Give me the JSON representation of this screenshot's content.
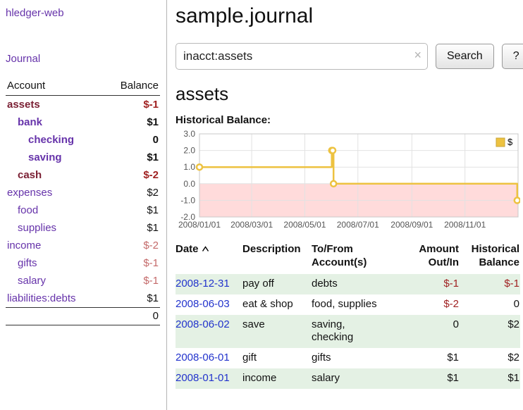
{
  "app": {
    "brand": "hledger-web"
  },
  "sidebar": {
    "journal_link": "Journal",
    "accounts": {
      "header_account": "Account",
      "header_balance": "Balance",
      "rows": [
        {
          "name": "assets",
          "balance": "$-1",
          "indent": 0,
          "bold": true,
          "name_style": "selected",
          "balance_style": "neg-strong"
        },
        {
          "name": "bank",
          "balance": "$1",
          "indent": 1,
          "bold": true,
          "name_style": "link",
          "balance_style": "normal"
        },
        {
          "name": "checking",
          "balance": "0",
          "indent": 2,
          "bold": true,
          "name_style": "link",
          "balance_style": "normal"
        },
        {
          "name": "saving",
          "balance": "$1",
          "indent": 2,
          "bold": true,
          "name_style": "link",
          "balance_style": "normal"
        },
        {
          "name": "cash",
          "balance": "$-2",
          "indent": 1,
          "bold": true,
          "name_style": "selected",
          "balance_style": "neg-strong"
        },
        {
          "name": "expenses",
          "balance": "$2",
          "indent": 0,
          "bold": false,
          "name_style": "link",
          "balance_style": "normal"
        },
        {
          "name": "food",
          "balance": "$1",
          "indent": 1,
          "bold": false,
          "name_style": "link",
          "balance_style": "normal"
        },
        {
          "name": "supplies",
          "balance": "$1",
          "indent": 1,
          "bold": false,
          "name_style": "link",
          "balance_style": "normal"
        },
        {
          "name": "income",
          "balance": "$-2",
          "indent": 0,
          "bold": false,
          "name_style": "link",
          "balance_style": "neg-muted"
        },
        {
          "name": "gifts",
          "balance": "$-1",
          "indent": 1,
          "bold": false,
          "name_style": "link",
          "balance_style": "neg-muted"
        },
        {
          "name": "salary",
          "balance": "$-1",
          "indent": 1,
          "bold": false,
          "name_style": "link",
          "balance_style": "neg-muted"
        },
        {
          "name": "liabilities:debts",
          "balance": "$1",
          "indent": 0,
          "bold": false,
          "name_style": "link",
          "balance_style": "normal"
        }
      ],
      "total": "0"
    }
  },
  "main": {
    "title": "sample.journal",
    "search": {
      "value": "inacct:assets",
      "clear_label": "×",
      "button_label": "Search",
      "help_label": "?"
    },
    "account_heading": "assets",
    "chart_heading": "Historical Balance:"
  },
  "chart_data": {
    "type": "line",
    "step": true,
    "title": "Historical Balance",
    "legend": "$",
    "legend_position": "top-right",
    "line_color": "#edc240",
    "negative_region_color": "#ffdbdb",
    "grid": true,
    "ylim": [
      -2.0,
      3.0
    ],
    "yticks": [
      "3.0",
      "2.0",
      "1.0",
      "0.0",
      "-1.0",
      "-2.0"
    ],
    "x_domain": [
      "2008-01-01",
      "2009-01-01"
    ],
    "xticks": [
      {
        "date": "2008-01-01",
        "label": "2008/01/01"
      },
      {
        "date": "2008-03-01",
        "label": "2008/03/01"
      },
      {
        "date": "2008-05-01",
        "label": "2008/05/01"
      },
      {
        "date": "2008-07-01",
        "label": "2008/07/01"
      },
      {
        "date": "2008-09-01",
        "label": "2008/09/01"
      },
      {
        "date": "2008-11-01",
        "label": "2008/11/01"
      }
    ],
    "series": [
      {
        "name": "$",
        "points": [
          {
            "date": "2008-01-01",
            "value": 1
          },
          {
            "date": "2008-06-01",
            "value": 2
          },
          {
            "date": "2008-06-02",
            "value": 2
          },
          {
            "date": "2008-06-03",
            "value": 0
          },
          {
            "date": "2008-12-31",
            "value": -1
          }
        ]
      }
    ]
  },
  "register": {
    "headers": {
      "date": "Date",
      "description": "Description",
      "accounts": "To/From\nAccount(s)",
      "amount": "Amount\nOut/In",
      "balance": "Historical\nBalance"
    },
    "sort": "date-ascending",
    "rows": [
      {
        "date": "2008-12-31",
        "description": "pay off",
        "accounts": "debts",
        "amount": "$-1",
        "amount_neg": true,
        "balance": "$-1",
        "balance_neg": true,
        "shaded": true
      },
      {
        "date": "2008-06-03",
        "description": "eat & shop",
        "accounts": "food, supplies",
        "amount": "$-2",
        "amount_neg": true,
        "balance": "0",
        "balance_neg": false,
        "shaded": false
      },
      {
        "date": "2008-06-02",
        "description": "save",
        "accounts": "saving,\nchecking",
        "amount": "0",
        "amount_neg": false,
        "balance": "$2",
        "balance_neg": false,
        "shaded": true
      },
      {
        "date": "2008-06-01",
        "description": "gift",
        "accounts": "gifts",
        "amount": "$1",
        "amount_neg": false,
        "balance": "$2",
        "balance_neg": false,
        "shaded": false
      },
      {
        "date": "2008-01-01",
        "description": "income",
        "accounts": "salary",
        "amount": "$1",
        "amount_neg": false,
        "balance": "$1",
        "balance_neg": false,
        "shaded": true
      }
    ]
  },
  "colors": {
    "link_purple": "#6633aa",
    "date_link_blue": "#2233cc",
    "negative_strong": "#a02222",
    "negative_muted": "#c46a6a",
    "selected_account_maroon": "#7a1f33",
    "row_shade_green": "#e4f1e4",
    "chart_line_yellow": "#edc240"
  }
}
